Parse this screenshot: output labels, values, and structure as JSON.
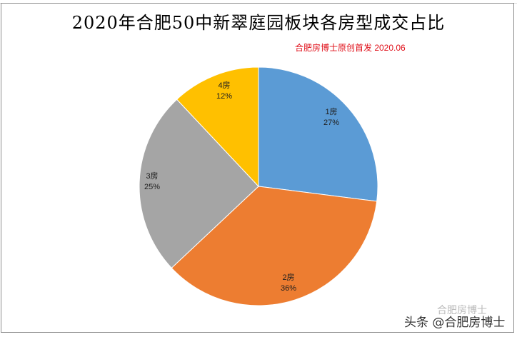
{
  "title": "2020年合肥50中新翠庭园板块各房型成交占比",
  "subtitle": "合肥房博士原创首发 2020.06",
  "watermark": {
    "main": "头条 @合肥房博士",
    "ghost": "合肥房博士"
  },
  "colors": {
    "1房": "#5b9bd5",
    "2房": "#ed7d31",
    "3房": "#a5a5a5",
    "4房": "#ffc000",
    "subtitle": "#e0101a"
  },
  "labels": [
    {
      "name": "1房",
      "pct": "27%"
    },
    {
      "name": "2房",
      "pct": "36%"
    },
    {
      "name": "3房",
      "pct": "25%"
    },
    {
      "name": "4房",
      "pct": "12%"
    }
  ],
  "chart_data": {
    "type": "pie",
    "title": "2020年合肥50中新翠庭园板块各房型成交占比",
    "subtitle": "合肥房博士原创首发 2020.06",
    "categories": [
      "1房",
      "2房",
      "3房",
      "4房"
    ],
    "values": [
      27,
      36,
      25,
      12
    ],
    "unit": "%",
    "start_angle": "12 o'clock, clockwise",
    "legend": "none (data labels on slices)"
  }
}
